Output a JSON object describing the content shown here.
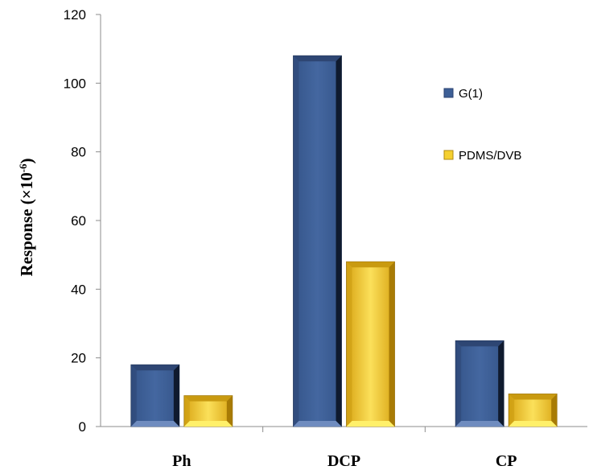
{
  "chart_data": {
    "type": "bar",
    "categories": [
      "Ph",
      "DCP",
      "CP"
    ],
    "series": [
      {
        "name": "G(1)",
        "values": [
          18,
          108,
          25
        ],
        "color": "#3d5f96"
      },
      {
        "name": "PDMS/DVB",
        "values": [
          9,
          48,
          9.5
        ],
        "color": "#f5d030"
      }
    ],
    "yticks": [
      "0",
      "20",
      "40",
      "60",
      "80",
      "100",
      "120"
    ],
    "ylim": [
      0,
      120
    ],
    "ylabel": {
      "main": "Response (×10",
      "exp": "-6",
      "close": ")"
    },
    "xlabel": "",
    "title": "",
    "legend_position": "right",
    "grid": false
  }
}
